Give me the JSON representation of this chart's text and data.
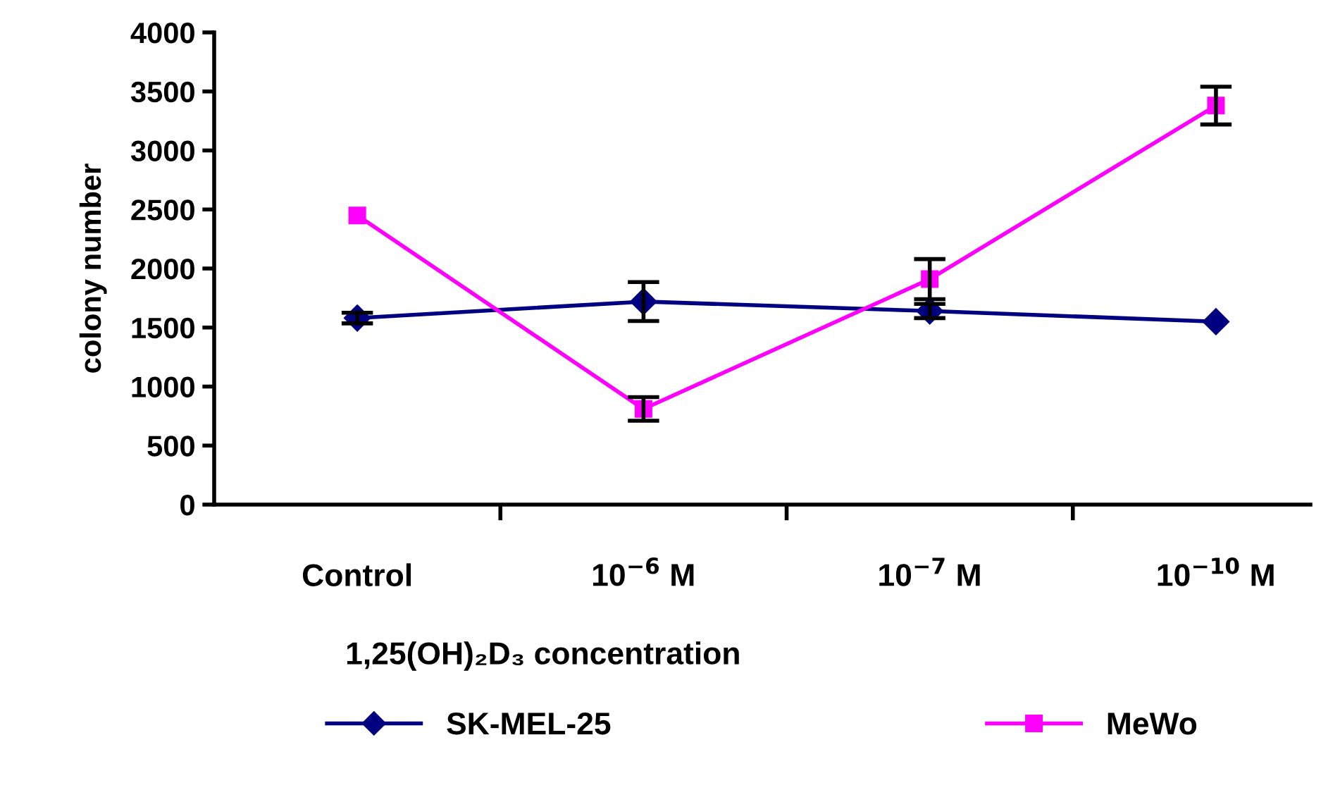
{
  "chart_data": {
    "type": "line",
    "xlabel": "1,25(OH)₂D₃ concentration",
    "ylabel": "colony number",
    "categories": [
      "Control",
      "10$^{−6}$ M",
      "10$^{−7}$ M",
      "10$^{−10}$ M"
    ],
    "series": [
      {
        "name": "SK-MEL-25",
        "color": "#000080",
        "marker": "diamond",
        "values": [
          1580,
          1720,
          1640,
          1550
        ],
        "errors": [
          45,
          165,
          60,
          null
        ]
      },
      {
        "name": "MeWo",
        "color": "#ff00ff",
        "marker": "square",
        "values": [
          2450,
          810,
          1910,
          3380
        ],
        "errors": [
          null,
          100,
          170,
          160
        ]
      }
    ],
    "ylim": [
      0,
      4000
    ],
    "yticks": [
      0,
      500,
      1000,
      1500,
      2000,
      2500,
      3000,
      3500,
      4000
    ],
    "grid": false,
    "legend": "bottom",
    "line_style": "solid"
  }
}
